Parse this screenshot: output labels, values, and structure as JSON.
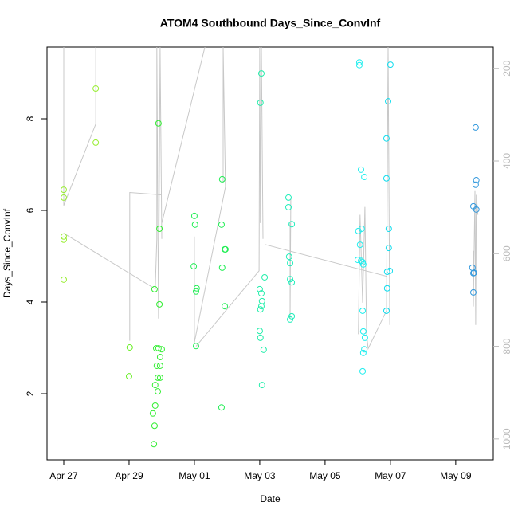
{
  "chart_data": {
    "type": "scatter",
    "title": "ATOM4 Southbound Days_Since_ConvInf",
    "xlabel": "Date",
    "ylabel": "Days_Since_ConvInf",
    "xlim": [
      -0.512,
      13.15
    ],
    "ylim": [
      0.557,
      9.565
    ],
    "y2lim": [
      1045,
      154
    ],
    "xticks": [
      {
        "value": 0,
        "label": "Apr 27"
      },
      {
        "value": 2,
        "label": "Apr 29"
      },
      {
        "value": 4,
        "label": "May 01"
      },
      {
        "value": 6,
        "label": "May 03"
      },
      {
        "value": 8,
        "label": "May 05"
      },
      {
        "value": 10,
        "label": "May 07"
      },
      {
        "value": 12,
        "label": "May 09"
      }
    ],
    "yticks": [
      2,
      4,
      6,
      8
    ],
    "y2ticks": [
      200,
      400,
      600,
      800,
      1000
    ],
    "series": [
      {
        "type": "line",
        "axis": "y2",
        "color": "#c8c8c8",
        "x": [
          0,
          0,
          0.98,
          0.98,
          null,
          0,
          2.8,
          2.85,
          2.85,
          2.9,
          2.95,
          3.0,
          null,
          2.02,
          2.02,
          3.0,
          null,
          3.0,
          4.32,
          null,
          4.0,
          4.0,
          4.95,
          4.88,
          4.88,
          null,
          4.05,
          5.98,
          6.0,
          6.02,
          6.05,
          6.1,
          null,
          6.15,
          9.9,
          null,
          6.93,
          6.93,
          6.95,
          null,
          9.02,
          9.07,
          9.15,
          9.22,
          9.27,
          9.32,
          9.88,
          9.93,
          9.98,
          null,
          12.54,
          12.54,
          12.59,
          12.61,
          12.63,
          12.68
        ],
        "values": [
          154,
          496,
          320,
          154,
          null,
          556,
          676,
          568,
          154,
          740,
          154,
          568,
          null,
          788,
          468,
          473,
          null,
          534,
          154,
          null,
          563,
          792,
          456,
          154,
          448,
          null,
          800,
          637,
          154,
          534,
          154,
          568,
          null,
          580,
          649,
          null,
          534,
          740,
          482,
          null,
          774,
          516,
          706,
          499,
          774,
          805,
          723,
          154,
          754,
          null,
          594,
          714,
          465,
          754,
          473,
          516
        ]
      },
      {
        "color": "#99ee33",
        "x": [
          0,
          0,
          0,
          0,
          0,
          0.98,
          0.98
        ],
        "values": [
          6.45,
          6.28,
          5.43,
          5.36,
          4.49,
          8.66,
          7.48
        ]
      },
      {
        "color": "#66ee22",
        "x": [
          2.02,
          2.0
        ],
        "values": [
          3.01,
          2.38
        ]
      },
      {
        "color": "#33ee33",
        "x": [
          2.9,
          2.93,
          2.78,
          2.93,
          2.83,
          2.9,
          3.0,
          2.95,
          2.85,
          2.95,
          2.8,
          2.88,
          2.95,
          2.88,
          2.8,
          2.73,
          2.78,
          2.76
        ],
        "values": [
          7.9,
          5.6,
          4.28,
          3.95,
          2.99,
          2.99,
          2.97,
          2.8,
          2.61,
          2.61,
          2.19,
          2.35,
          2.35,
          2.05,
          1.74,
          1.57,
          1.3,
          0.9
        ]
      },
      {
        "color": "#22ee55",
        "x": [
          4.0,
          4.02,
          3.98,
          4.07,
          4.05,
          4.05,
          4.85,
          4.83,
          4.95,
          4.93,
          4.85,
          4.93,
          4.83
        ],
        "values": [
          5.88,
          5.69,
          4.78,
          4.3,
          4.23,
          3.04,
          6.68,
          5.69,
          5.15,
          5.15,
          4.75,
          3.91,
          1.7
        ]
      },
      {
        "color": "#22eeaa",
        "x": [
          6.05,
          6.02,
          6.15,
          6.0,
          6.05,
          6.07,
          6.05,
          6.02,
          6.0,
          6.02,
          6.12,
          6.07
        ],
        "values": [
          8.99,
          8.35,
          4.54,
          4.28,
          4.19,
          4.02,
          3.91,
          3.84,
          3.37,
          3.22,
          2.96,
          2.19
        ]
      },
      {
        "color": "#22eebb",
        "x": [
          6.88,
          6.88,
          6.98,
          6.9,
          6.93,
          6.93,
          6.98,
          6.98,
          6.93
        ],
        "values": [
          6.28,
          6.07,
          5.7,
          4.99,
          4.85,
          4.5,
          4.43,
          3.69,
          3.62
        ]
      },
      {
        "color": "#22eeee",
        "x": [
          9.05,
          9.05,
          9.1,
          9.2,
          9.02,
          9.07,
          9.12,
          9.0,
          9.1,
          9.15,
          9.17,
          9.15,
          9.17,
          9.22,
          9.2,
          9.17,
          9.15
        ],
        "values": [
          9.23,
          9.17,
          6.89,
          6.73,
          5.55,
          5.25,
          5.6,
          4.92,
          4.9,
          4.87,
          4.82,
          3.81,
          3.36,
          3.22,
          2.97,
          2.89,
          2.49
        ]
      },
      {
        "color": "#11ddee",
        "x": [
          10.0,
          9.93,
          9.88,
          9.88,
          9.95,
          9.95,
          9.9,
          9.98,
          9.9,
          9.88
        ],
        "values": [
          9.18,
          8.38,
          7.57,
          6.7,
          5.6,
          5.18,
          4.66,
          4.68,
          4.3,
          3.81
        ]
      },
      {
        "color": "#3399dd",
        "x": [
          12.61,
          12.63,
          12.61,
          12.54,
          12.63,
          12.51,
          12.56,
          12.54,
          12.54
        ],
        "values": [
          7.81,
          6.66,
          6.56,
          6.09,
          6.02,
          4.75,
          4.64,
          4.63,
          4.21
        ]
      }
    ]
  }
}
